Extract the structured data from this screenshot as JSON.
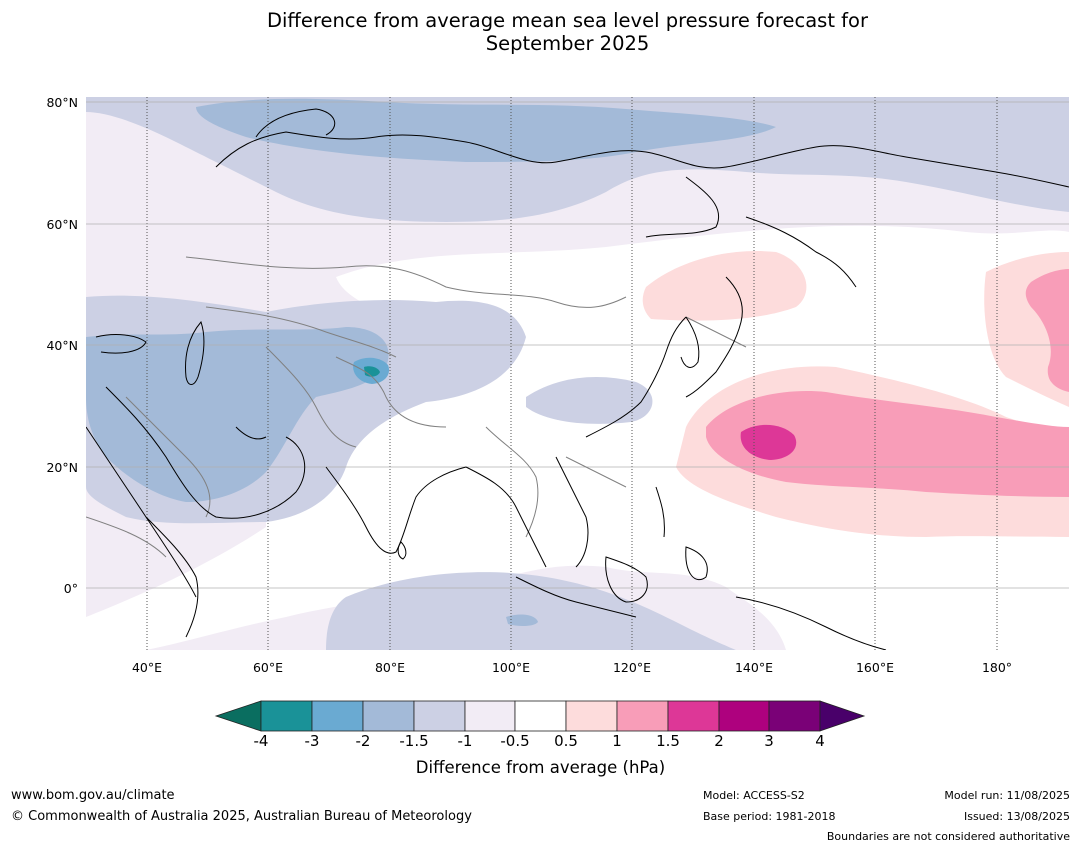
{
  "title_line1": "Difference from average mean sea level pressure forecast for",
  "title_line2": "September 2025",
  "lat_labels": [
    "80°N",
    "60°N",
    "40°N",
    "20°N",
    "0°"
  ],
  "lon_labels": [
    "40°E",
    "60°E",
    "80°E",
    "100°E",
    "120°E",
    "140°E",
    "160°E",
    "180°"
  ],
  "colorbar": {
    "label": "Difference from average (hPa)",
    "ticks": [
      "-4",
      "-3",
      "-2",
      "-1.5",
      "-1",
      "-0.5",
      "0.5",
      "1",
      "1.5",
      "2",
      "3",
      "4"
    ],
    "colors": {
      "below_-4": "#0a6e60",
      "-4_-3": "#1a9298",
      "-3_-2": "#6aaad2",
      "-2_-1.5": "#a3bad8",
      "-1.5_-1": "#ccd0e4",
      "-1_-0.5": "#f2ecf5",
      "-0.5_0.5": "#ffffff",
      "0.5_1": "#fddcdc",
      "1_1.5": "#f89db8",
      "1.5_2": "#dd3797",
      "2_3": "#ae017e",
      "3_4": "#7a0177",
      "above_4": "#49006a"
    }
  },
  "footer": {
    "website": "www.bom.gov.au/climate",
    "copyright": "© Commonwealth of Australia 2025, Australian Bureau of Meteorology",
    "model": "Model: ACCESS-S2",
    "base_period": "Base period: 1981-2018",
    "model_run": "Model run: 11/08/2025",
    "issued": "Issued: 13/08/2025",
    "disclaimer": "Boundaries are not considered authoritative"
  }
}
